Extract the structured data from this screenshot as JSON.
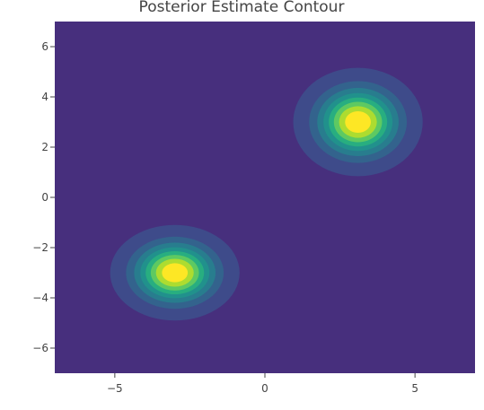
{
  "chart_data": {
    "type": "contour",
    "title": "Posterior Estimate Contour",
    "xlabel": "",
    "ylabel": "",
    "xlim": [
      -7,
      7
    ],
    "ylim": [
      -7,
      7
    ],
    "x_ticks": [
      -5,
      0,
      5
    ],
    "x_tick_labels": [
      "−5",
      "0",
      "5"
    ],
    "y_ticks": [
      6,
      4,
      2,
      0,
      -2,
      -4,
      -6
    ],
    "y_tick_labels": [
      "6",
      "4",
      "2",
      "0",
      "−2",
      "−4",
      "−6"
    ],
    "grid": false,
    "legend": "none",
    "colorscale": [
      "#472f7d",
      "#3e4b8a",
      "#33638d",
      "#287d8e",
      "#21918c",
      "#28ae80",
      "#5ec962",
      "#addc30",
      "#fde725"
    ],
    "background_color": "#472f7d",
    "peaks": [
      {
        "x": 3.1,
        "y": 3.0,
        "sigma_x": 0.85,
        "sigma_y": 0.85
      },
      {
        "x": -3.0,
        "y": -3.0,
        "sigma_x": 0.85,
        "sigma_y": 0.75
      }
    ],
    "levels": [
      0.04,
      0.16,
      0.28,
      0.4,
      0.52,
      0.64,
      0.76,
      0.88
    ]
  }
}
